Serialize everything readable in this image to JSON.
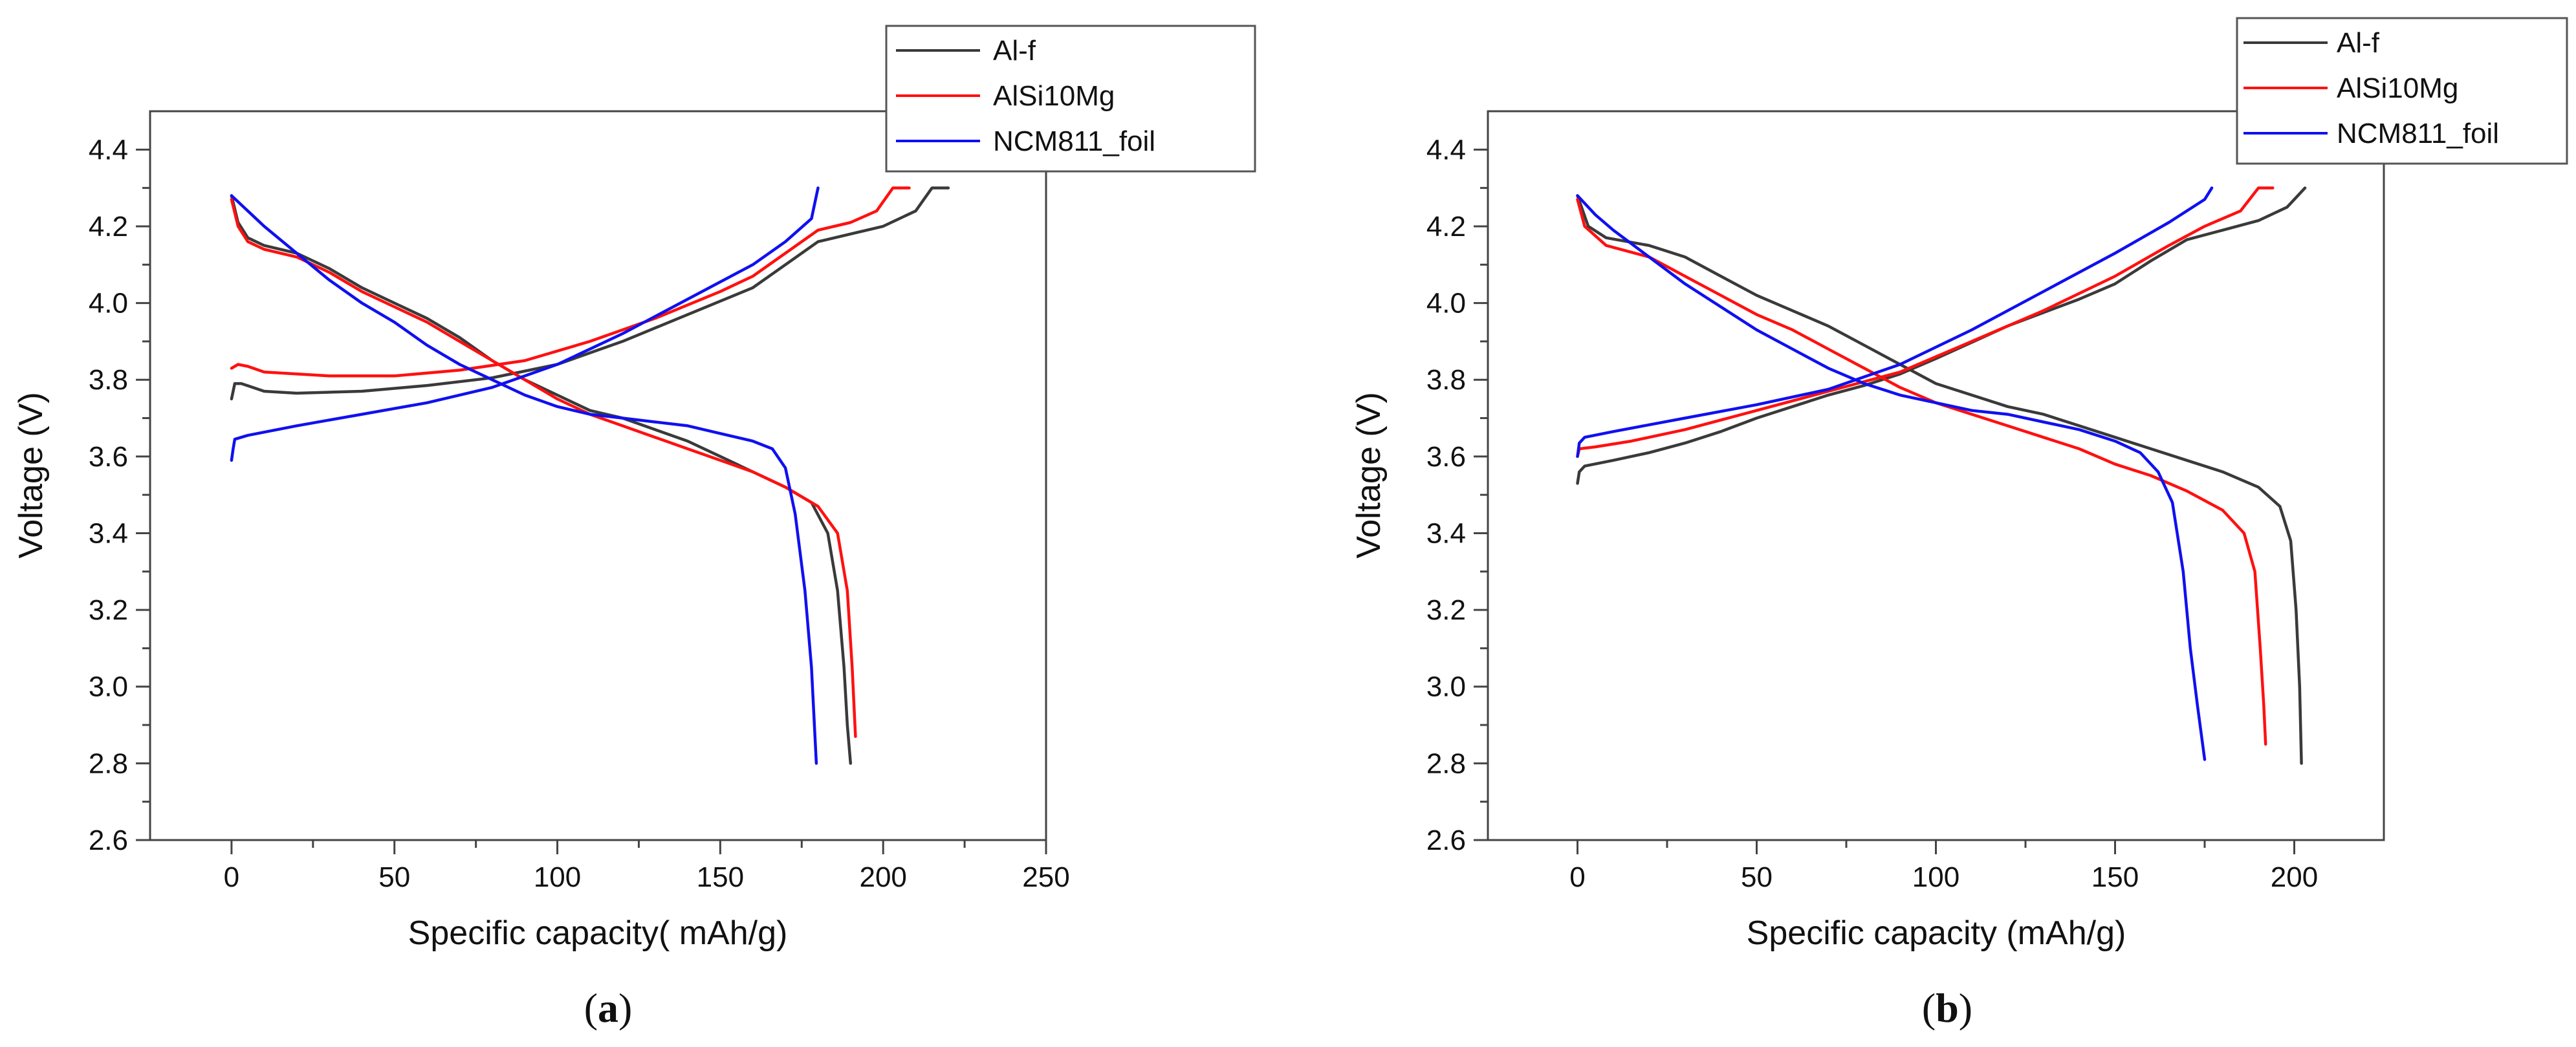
{
  "chart_data": [
    {
      "type": "line",
      "panel": "a",
      "panel_label": "a",
      "xlabel": "Specific capacity( mAh/g)",
      "ylabel": "Voltage (V)",
      "xlim": [
        -25,
        250
      ],
      "ylim": [
        2.6,
        4.5
      ],
      "xticks": [
        0,
        50,
        100,
        150,
        200,
        250
      ],
      "yticks": [
        2.6,
        2.8,
        3.0,
        3.2,
        3.4,
        3.6,
        3.8,
        4.0,
        4.2,
        4.4
      ],
      "xtick_labels": [
        "0",
        "50",
        "100",
        "150",
        "200",
        "250"
      ],
      "ytick_labels": [
        "2.6",
        "2.8",
        "3.0",
        "3.2",
        "3.4",
        "3.6",
        "3.8",
        "4.0",
        "4.2",
        "4.4"
      ],
      "legend_position": "top-right",
      "series": [
        {
          "name": "Al-f",
          "color": "#3a3a3a",
          "charge": [
            [
              0,
              3.75
            ],
            [
              1,
              3.79
            ],
            [
              3,
              3.79
            ],
            [
              10,
              3.77
            ],
            [
              20,
              3.765
            ],
            [
              40,
              3.77
            ],
            [
              60,
              3.785
            ],
            [
              80,
              3.805
            ],
            [
              100,
              3.84
            ],
            [
              120,
              3.9
            ],
            [
              140,
              3.97
            ],
            [
              160,
              4.04
            ],
            [
              170,
              4.1
            ],
            [
              180,
              4.16
            ],
            [
              190,
              4.18
            ],
            [
              200,
              4.2
            ],
            [
              210,
              4.24
            ],
            [
              215,
              4.3
            ],
            [
              220,
              4.3
            ]
          ],
          "discharge": [
            [
              0,
              4.28
            ],
            [
              2,
              4.21
            ],
            [
              5,
              4.17
            ],
            [
              10,
              4.15
            ],
            [
              20,
              4.13
            ],
            [
              30,
              4.09
            ],
            [
              40,
              4.04
            ],
            [
              50,
              4.0
            ],
            [
              60,
              3.96
            ],
            [
              70,
              3.91
            ],
            [
              80,
              3.85
            ],
            [
              90,
              3.8
            ],
            [
              100,
              3.76
            ],
            [
              110,
              3.72
            ],
            [
              120,
              3.7
            ],
            [
              130,
              3.67
            ],
            [
              140,
              3.64
            ],
            [
              150,
              3.6
            ],
            [
              160,
              3.56
            ],
            [
              170,
              3.52
            ],
            [
              178,
              3.48
            ],
            [
              183,
              3.4
            ],
            [
              186,
              3.25
            ],
            [
              188,
              3.05
            ],
            [
              189,
              2.9
            ],
            [
              190,
              2.8
            ]
          ]
        },
        {
          "name": "AlSi10Mg",
          "color": "#ff1010",
          "charge": [
            [
              0,
              3.83
            ],
            [
              2,
              3.84
            ],
            [
              5,
              3.835
            ],
            [
              10,
              3.82
            ],
            [
              20,
              3.815
            ],
            [
              30,
              3.81
            ],
            [
              50,
              3.81
            ],
            [
              70,
              3.825
            ],
            [
              90,
              3.85
            ],
            [
              110,
              3.9
            ],
            [
              130,
              3.96
            ],
            [
              150,
              4.03
            ],
            [
              160,
              4.07
            ],
            [
              170,
              4.13
            ],
            [
              180,
              4.19
            ],
            [
              190,
              4.21
            ],
            [
              198,
              4.24
            ],
            [
              203,
              4.3
            ],
            [
              208,
              4.3
            ]
          ],
          "discharge": [
            [
              0,
              4.27
            ],
            [
              2,
              4.2
            ],
            [
              5,
              4.16
            ],
            [
              10,
              4.14
            ],
            [
              20,
              4.12
            ],
            [
              30,
              4.08
            ],
            [
              40,
              4.03
            ],
            [
              50,
              3.99
            ],
            [
              60,
              3.95
            ],
            [
              70,
              3.9
            ],
            [
              80,
              3.85
            ],
            [
              90,
              3.8
            ],
            [
              100,
              3.75
            ],
            [
              110,
              3.71
            ],
            [
              120,
              3.68
            ],
            [
              130,
              3.65
            ],
            [
              140,
              3.62
            ],
            [
              150,
              3.59
            ],
            [
              160,
              3.56
            ],
            [
              170,
              3.52
            ],
            [
              180,
              3.47
            ],
            [
              186,
              3.4
            ],
            [
              189,
              3.25
            ],
            [
              190.5,
              3.05
            ],
            [
              191.5,
              2.87
            ]
          ]
        },
        {
          "name": "NCM811_foil",
          "color": "#1010f0",
          "charge": [
            [
              0,
              3.59
            ],
            [
              0.5,
              3.62
            ],
            [
              1,
              3.645
            ],
            [
              5,
              3.655
            ],
            [
              20,
              3.68
            ],
            [
              40,
              3.71
            ],
            [
              60,
              3.74
            ],
            [
              80,
              3.78
            ],
            [
              100,
              3.84
            ],
            [
              120,
              3.92
            ],
            [
              140,
              4.01
            ],
            [
              160,
              4.1
            ],
            [
              170,
              4.16
            ],
            [
              178,
              4.22
            ],
            [
              180,
              4.3
            ]
          ],
          "discharge": [
            [
              0,
              4.28
            ],
            [
              5,
              4.24
            ],
            [
              10,
              4.2
            ],
            [
              20,
              4.13
            ],
            [
              30,
              4.06
            ],
            [
              40,
              4.0
            ],
            [
              50,
              3.95
            ],
            [
              60,
              3.89
            ],
            [
              70,
              3.84
            ],
            [
              80,
              3.8
            ],
            [
              90,
              3.76
            ],
            [
              100,
              3.73
            ],
            [
              110,
              3.71
            ],
            [
              120,
              3.7
            ],
            [
              130,
              3.69
            ],
            [
              140,
              3.68
            ],
            [
              150,
              3.66
            ],
            [
              160,
              3.64
            ],
            [
              166,
              3.62
            ],
            [
              170,
              3.57
            ],
            [
              173,
              3.45
            ],
            [
              176,
              3.25
            ],
            [
              178,
              3.05
            ],
            [
              179.5,
              2.8
            ]
          ]
        }
      ]
    },
    {
      "type": "line",
      "panel": "b",
      "panel_label": "b",
      "xlabel": "Specific capacity (mAh/g)",
      "ylabel": "Voltage (V)",
      "xlim": [
        -25,
        225
      ],
      "ylim": [
        2.6,
        4.5
      ],
      "xticks": [
        0,
        50,
        100,
        150,
        200
      ],
      "yticks": [
        2.6,
        2.8,
        3.0,
        3.2,
        3.4,
        3.6,
        3.8,
        4.0,
        4.2,
        4.4
      ],
      "xtick_labels": [
        "0",
        "50",
        "100",
        "150",
        "200"
      ],
      "ytick_labels": [
        "2.6",
        "2.8",
        "3.0",
        "3.2",
        "3.4",
        "3.6",
        "3.8",
        "4.0",
        "4.2",
        "4.4"
      ],
      "legend_position": "top-right",
      "series": [
        {
          "name": "Al-f",
          "color": "#3a3a3a",
          "charge": [
            [
              0,
              3.53
            ],
            [
              0.5,
              3.56
            ],
            [
              2,
              3.575
            ],
            [
              10,
              3.59
            ],
            [
              20,
              3.61
            ],
            [
              30,
              3.635
            ],
            [
              40,
              3.665
            ],
            [
              50,
              3.7
            ],
            [
              60,
              3.73
            ],
            [
              70,
              3.76
            ],
            [
              80,
              3.785
            ],
            [
              90,
              3.815
            ],
            [
              100,
              3.855
            ],
            [
              120,
              3.94
            ],
            [
              140,
              4.01
            ],
            [
              150,
              4.05
            ],
            [
              160,
              4.11
            ],
            [
              170,
              4.165
            ],
            [
              180,
              4.19
            ],
            [
              190,
              4.215
            ],
            [
              198,
              4.25
            ],
            [
              203,
              4.3
            ]
          ],
          "discharge": [
            [
              0,
              4.28
            ],
            [
              3,
              4.2
            ],
            [
              8,
              4.17
            ],
            [
              20,
              4.15
            ],
            [
              30,
              4.12
            ],
            [
              40,
              4.07
            ],
            [
              50,
              4.02
            ],
            [
              60,
              3.98
            ],
            [
              70,
              3.94
            ],
            [
              80,
              3.89
            ],
            [
              90,
              3.84
            ],
            [
              100,
              3.79
            ],
            [
              110,
              3.76
            ],
            [
              120,
              3.73
            ],
            [
              130,
              3.71
            ],
            [
              140,
              3.68
            ],
            [
              150,
              3.65
            ],
            [
              160,
              3.62
            ],
            [
              170,
              3.59
            ],
            [
              180,
              3.56
            ],
            [
              190,
              3.52
            ],
            [
              196,
              3.47
            ],
            [
              199,
              3.38
            ],
            [
              200.5,
              3.2
            ],
            [
              201.5,
              3.0
            ],
            [
              202,
              2.8
            ]
          ]
        },
        {
          "name": "AlSi10Mg",
          "color": "#ff1010",
          "charge": [
            [
              0,
              3.6
            ],
            [
              0.5,
              3.62
            ],
            [
              5,
              3.625
            ],
            [
              15,
              3.64
            ],
            [
              30,
              3.67
            ],
            [
              50,
              3.72
            ],
            [
              70,
              3.77
            ],
            [
              90,
              3.82
            ],
            [
              110,
              3.9
            ],
            [
              130,
              3.98
            ],
            [
              150,
              4.07
            ],
            [
              165,
              4.15
            ],
            [
              175,
              4.2
            ],
            [
              185,
              4.24
            ],
            [
              190,
              4.3
            ],
            [
              194,
              4.3
            ]
          ],
          "discharge": [
            [
              0,
              4.27
            ],
            [
              2,
              4.2
            ],
            [
              8,
              4.15
            ],
            [
              20,
              4.12
            ],
            [
              30,
              4.07
            ],
            [
              40,
              4.02
            ],
            [
              50,
              3.97
            ],
            [
              60,
              3.93
            ],
            [
              70,
              3.88
            ],
            [
              80,
              3.83
            ],
            [
              90,
              3.78
            ],
            [
              100,
              3.74
            ],
            [
              110,
              3.71
            ],
            [
              120,
              3.68
            ],
            [
              130,
              3.65
            ],
            [
              140,
              3.62
            ],
            [
              150,
              3.58
            ],
            [
              160,
              3.55
            ],
            [
              170,
              3.51
            ],
            [
              180,
              3.46
            ],
            [
              186,
              3.4
            ],
            [
              189,
              3.3
            ],
            [
              190.5,
              3.1
            ],
            [
              191.5,
              2.95
            ],
            [
              192,
              2.85
            ]
          ]
        },
        {
          "name": "NCM811_foil",
          "color": "#1010f0",
          "charge": [
            [
              0,
              3.6
            ],
            [
              0.5,
              3.635
            ],
            [
              2,
              3.65
            ],
            [
              10,
              3.665
            ],
            [
              30,
              3.7
            ],
            [
              50,
              3.735
            ],
            [
              70,
              3.775
            ],
            [
              90,
              3.84
            ],
            [
              110,
              3.93
            ],
            [
              130,
              4.03
            ],
            [
              150,
              4.13
            ],
            [
              165,
              4.21
            ],
            [
              175,
              4.27
            ],
            [
              177,
              4.3
            ]
          ],
          "discharge": [
            [
              0,
              4.28
            ],
            [
              5,
              4.23
            ],
            [
              10,
              4.19
            ],
            [
              20,
              4.12
            ],
            [
              30,
              4.05
            ],
            [
              40,
              3.99
            ],
            [
              50,
              3.93
            ],
            [
              60,
              3.88
            ],
            [
              70,
              3.83
            ],
            [
              80,
              3.79
            ],
            [
              90,
              3.76
            ],
            [
              100,
              3.74
            ],
            [
              110,
              3.72
            ],
            [
              120,
              3.71
            ],
            [
              130,
              3.69
            ],
            [
              140,
              3.67
            ],
            [
              150,
              3.64
            ],
            [
              157,
              3.61
            ],
            [
              162,
              3.56
            ],
            [
              166,
              3.48
            ],
            [
              169,
              3.3
            ],
            [
              171,
              3.1
            ],
            [
              173,
              2.95
            ],
            [
              175,
              2.81
            ]
          ]
        }
      ]
    }
  ]
}
